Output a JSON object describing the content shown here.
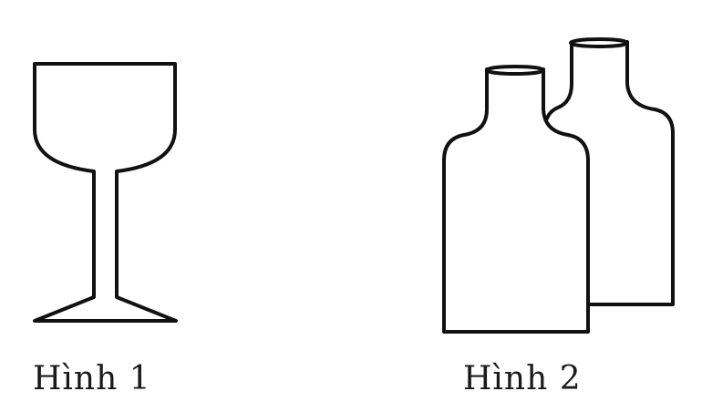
{
  "figures": [
    {
      "id": "figure-1",
      "object": "wine-glass",
      "caption": "Hình 1"
    },
    {
      "id": "figure-2",
      "object": "two-bottles",
      "caption": "Hình 2"
    }
  ],
  "colors": {
    "stroke": "#111111",
    "background": "#ffffff"
  }
}
